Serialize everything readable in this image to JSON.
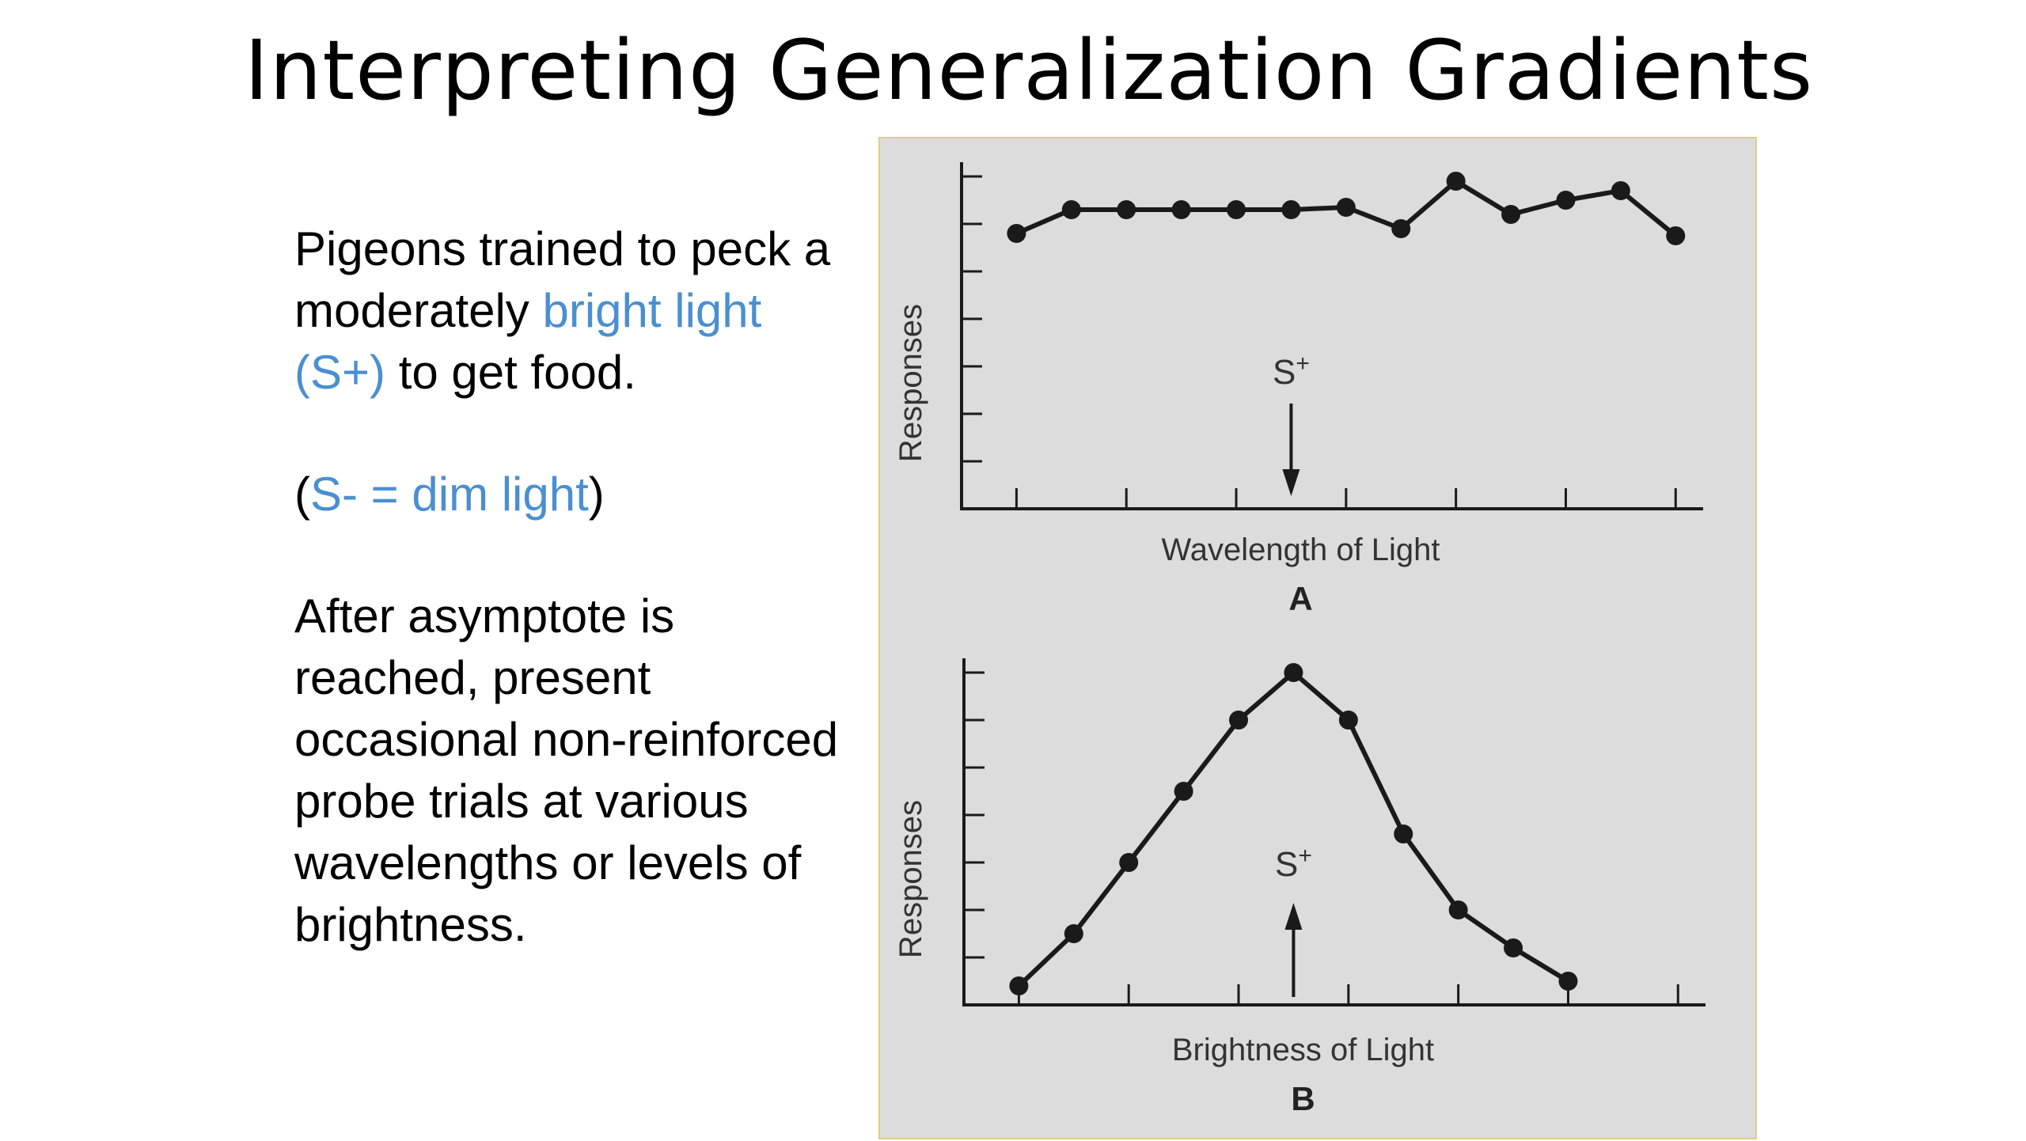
{
  "slide": {
    "title": "Interpreting Generalization Gradients",
    "para1": {
      "before": "Pigeons trained to peck a moderately ",
      "highlight": "bright light (S+)",
      "after": " to get food."
    },
    "para2": {
      "open": "(",
      "highlight": "S- = dim light",
      "close": ")"
    },
    "para3": "After asymptote is reached, present occasional non-reinforced probe trials at various wavelengths or levels of brightness.",
    "highlight_color": "#4a8fd1"
  },
  "chart_data": [
    {
      "type": "line",
      "panel_label": "A",
      "xlabel": "Wavelength of Light",
      "ylabel": "Responses",
      "x": [
        1,
        2,
        3,
        4,
        5,
        6,
        7,
        8,
        9,
        10,
        11,
        12,
        13
      ],
      "series": [
        {
          "values": [
            5.8,
            6.3,
            6.3,
            6.3,
            6.3,
            6.3,
            6.35,
            5.9,
            6.9,
            6.2,
            6.5,
            6.7,
            5.75
          ]
        }
      ],
      "xlim": [
        0,
        13.5
      ],
      "ylim": [
        0,
        7.3
      ],
      "marker": {
        "label": "S+",
        "x": 6
      }
    },
    {
      "type": "line",
      "panel_label": "B",
      "xlabel": "Brightness of Light",
      "ylabel": "Responses",
      "x": [
        1,
        2,
        3,
        4,
        5,
        6,
        7,
        8,
        9,
        10,
        11
      ],
      "series": [
        {
          "values": [
            0.4,
            1.5,
            3.0,
            4.5,
            6.0,
            7.0,
            6.0,
            3.6,
            2.0,
            1.2,
            0.5
          ]
        }
      ],
      "xlim": [
        0,
        13.5
      ],
      "ylim": [
        0,
        7.3
      ],
      "marker": {
        "label": "S+",
        "x": 6
      }
    }
  ]
}
